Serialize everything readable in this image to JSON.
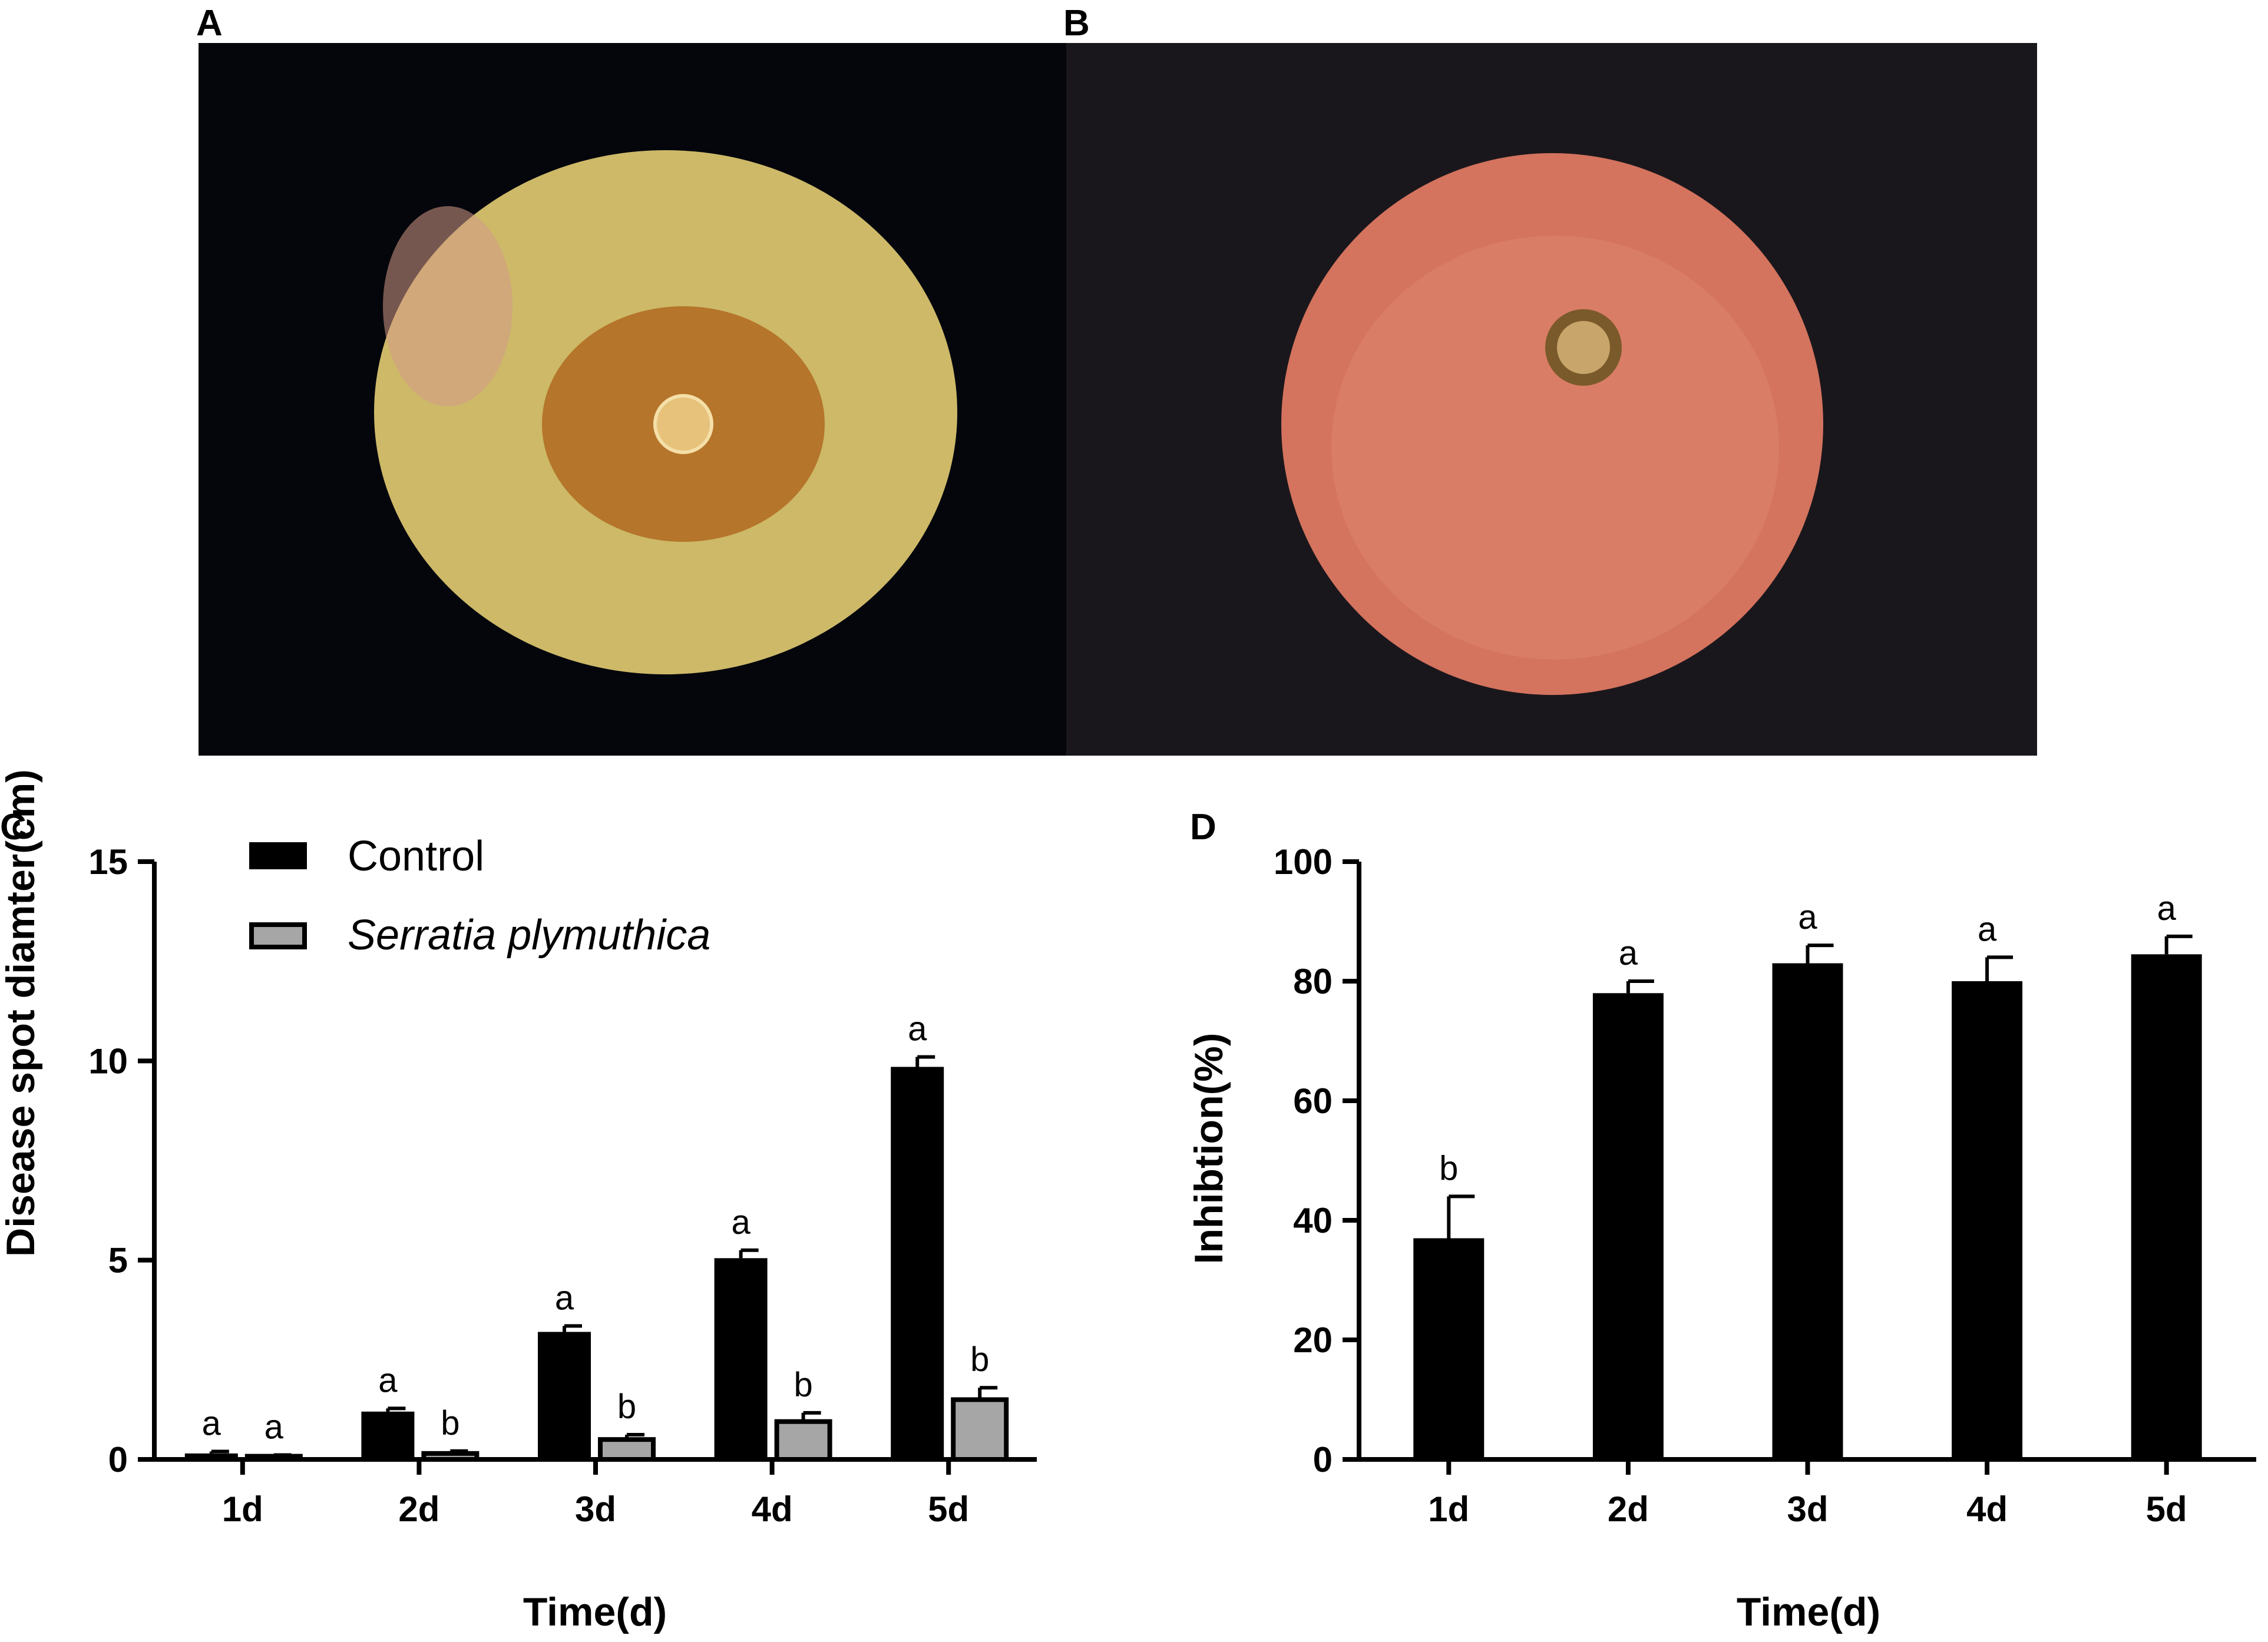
{
  "panels": {
    "A": {
      "label": "A"
    },
    "B": {
      "label": "B"
    },
    "C": {
      "label": "C"
    },
    "D": {
      "label": "D"
    }
  },
  "photos": {
    "A": {
      "background": "#05060c",
      "fruit_color": "#cdb968",
      "lesion_color": "#b06820"
    },
    "B": {
      "background": "#1a171c",
      "fruit_color": "#d4735e",
      "lesion_color": "#7a5a2a"
    }
  },
  "colors": {
    "control": "#000000",
    "serratia": "#a6a6a6",
    "axis": "#000000"
  },
  "chart_data": [
    {
      "panel": "C",
      "type": "bar",
      "categories": [
        "1d",
        "2d",
        "3d",
        "4d",
        "5d"
      ],
      "xlabel": "Time(d)",
      "ylabel": "Disease spot diamter(cm)",
      "ylim": [
        0,
        15
      ],
      "yticks": [
        0,
        5,
        10,
        15
      ],
      "legend": "top-left",
      "series": [
        {
          "name": "Control",
          "italic": false,
          "color": "#000000",
          "values": [
            0.15,
            1.2,
            3.2,
            5.05,
            9.85
          ],
          "errors": [
            0.05,
            0.08,
            0.15,
            0.2,
            0.25
          ],
          "letters": [
            "a",
            "a",
            "a",
            "a",
            "a"
          ]
        },
        {
          "name": "Serratia plymuthica",
          "italic": true,
          "color": "#a6a6a6",
          "values": [
            0.08,
            0.15,
            0.5,
            0.95,
            1.5
          ],
          "errors": [
            0.03,
            0.06,
            0.12,
            0.22,
            0.3
          ],
          "letters": [
            "a",
            "b",
            "b",
            "b",
            "b"
          ]
        }
      ]
    },
    {
      "panel": "D",
      "type": "bar",
      "categories": [
        "1d",
        "2d",
        "3d",
        "4d",
        "5d"
      ],
      "xlabel": "Time(d)",
      "ylabel": "Inhibtion(%)",
      "ylim": [
        0,
        100
      ],
      "yticks": [
        0,
        20,
        40,
        60,
        80,
        100
      ],
      "series": [
        {
          "color": "#000000",
          "values": [
            37,
            78,
            83,
            80,
            84.5
          ],
          "errors": [
            7,
            2,
            3,
            4,
            3
          ],
          "letters": [
            "b",
            "a",
            "a",
            "a",
            "a"
          ]
        }
      ]
    }
  ]
}
